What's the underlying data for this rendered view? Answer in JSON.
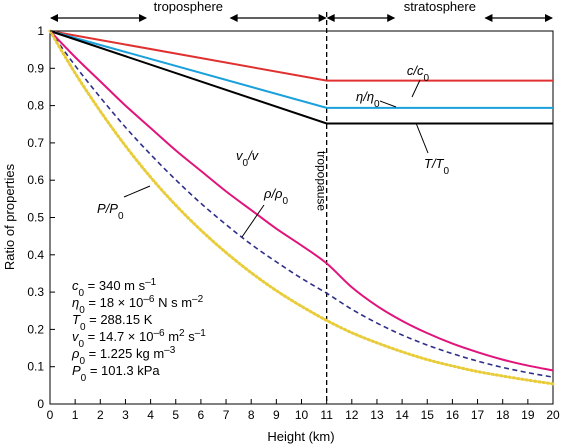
{
  "chart_data": {
    "type": "line",
    "xlabel": "Height (km)",
    "ylabel": "Ratio of properties",
    "xlim": [
      0,
      20
    ],
    "ylim": [
      0,
      1
    ],
    "x_ticks": [
      "0",
      "1",
      "2",
      "3",
      "4",
      "5",
      "6",
      "7",
      "8",
      "9",
      "10",
      "11",
      "12",
      "13",
      "14",
      "15",
      "16",
      "17",
      "18",
      "19",
      "20"
    ],
    "y_ticks": [
      "0",
      "0.1",
      "0.2",
      "0.3",
      "0.4",
      "0.5",
      "0.6",
      "0.7",
      "0.8",
      "0.9",
      "1"
    ],
    "grid": false,
    "regions": [
      {
        "label": "troposphere",
        "from": 0,
        "to": 11
      },
      {
        "label": "stratosphere",
        "from": 11,
        "to": 20
      }
    ],
    "tropopause": {
      "x": 11,
      "label": "tropopause"
    },
    "series": [
      {
        "key": "c",
        "color": "#e03030",
        "style": "solid",
        "points": [
          [
            0,
            1
          ],
          [
            11,
            0.867
          ],
          [
            20,
            0.867
          ]
        ]
      },
      {
        "key": "eta",
        "color": "#1aa0dc",
        "style": "solid",
        "points": [
          [
            0,
            1
          ],
          [
            11,
            0.794
          ],
          [
            20,
            0.794
          ]
        ]
      },
      {
        "key": "T",
        "color": "#000000",
        "style": "solid",
        "points": [
          [
            0,
            1
          ],
          [
            11,
            0.752
          ],
          [
            20,
            0.752
          ]
        ]
      },
      {
        "key": "nu",
        "color": "#e0147a",
        "style": "solid",
        "points": [
          [
            0,
            1
          ],
          [
            1,
            0.93
          ],
          [
            2,
            0.865
          ],
          [
            3,
            0.8
          ],
          [
            4,
            0.74
          ],
          [
            5,
            0.68
          ],
          [
            6,
            0.625
          ],
          [
            7,
            0.57
          ],
          [
            8,
            0.52
          ],
          [
            9,
            0.47
          ],
          [
            10,
            0.425
          ],
          [
            11,
            0.377
          ],
          [
            12,
            0.313
          ],
          [
            13,
            0.263
          ],
          [
            14,
            0.223
          ],
          [
            15,
            0.19
          ],
          [
            16,
            0.162
          ],
          [
            17,
            0.139
          ],
          [
            18,
            0.119
          ],
          [
            19,
            0.103
          ],
          [
            20,
            0.09
          ]
        ]
      },
      {
        "key": "rho",
        "color": "#2e2e8a",
        "style": "dashed",
        "points": [
          [
            0,
            1
          ],
          [
            1,
            0.907
          ],
          [
            2,
            0.822
          ],
          [
            3,
            0.742
          ],
          [
            4,
            0.669
          ],
          [
            5,
            0.601
          ],
          [
            6,
            0.538
          ],
          [
            7,
            0.481
          ],
          [
            8,
            0.428
          ],
          [
            9,
            0.381
          ],
          [
            10,
            0.337
          ],
          [
            11,
            0.297
          ],
          [
            12,
            0.254
          ],
          [
            13,
            0.217
          ],
          [
            14,
            0.185
          ],
          [
            15,
            0.158
          ],
          [
            16,
            0.135
          ],
          [
            17,
            0.115
          ],
          [
            18,
            0.098
          ],
          [
            19,
            0.084
          ],
          [
            20,
            0.072
          ]
        ]
      },
      {
        "key": "P",
        "color": "#e8cc3a",
        "style": "dotted",
        "points": [
          [
            0,
            1
          ],
          [
            1,
            0.887
          ],
          [
            2,
            0.785
          ],
          [
            3,
            0.692
          ],
          [
            4,
            0.608
          ],
          [
            5,
            0.533
          ],
          [
            6,
            0.466
          ],
          [
            7,
            0.406
          ],
          [
            8,
            0.352
          ],
          [
            9,
            0.304
          ],
          [
            10,
            0.262
          ],
          [
            11,
            0.224
          ],
          [
            12,
            0.191
          ],
          [
            13,
            0.164
          ],
          [
            14,
            0.14
          ],
          [
            15,
            0.119
          ],
          [
            16,
            0.102
          ],
          [
            17,
            0.087
          ],
          [
            18,
            0.075
          ],
          [
            19,
            0.064
          ],
          [
            20,
            0.054
          ]
        ]
      }
    ],
    "curve_labels": [
      {
        "series": "c",
        "main": "c/c",
        "sub": "0"
      },
      {
        "series": "eta",
        "main": "η/η",
        "sub": "0"
      },
      {
        "series": "T",
        "main": "T/T",
        "sub": "0"
      },
      {
        "series": "nu",
        "main": "v",
        "sub": "0",
        "tail": "/v"
      },
      {
        "series": "rho",
        "main": "ρ/ρ",
        "sub": "0"
      },
      {
        "series": "P",
        "main": "P/P",
        "sub": "0"
      }
    ],
    "legend_box": [
      {
        "sym": "c",
        "sub": "0",
        "text": " = 340 m s",
        "sup": "–1"
      },
      {
        "sym": "η",
        "sub": "0",
        "text": " = 18 × 10",
        "sup": "–6",
        "text2": " N s m",
        "sup2": "–2"
      },
      {
        "sym": "T",
        "sub": "0",
        "text": " = 288.15 K"
      },
      {
        "sym": "v",
        "sub": "0",
        "text": " = 14.7 × 10",
        "sup": "–6",
        "text2": " m",
        "sup2": "2",
        "text3": " s",
        "sup3": "–1"
      },
      {
        "sym": "ρ",
        "sub": "0",
        "text": " = 1.225 kg m",
        "sup": "–3"
      },
      {
        "sym": "P",
        "sub": "0",
        "text": " = 101.3 kPa"
      }
    ]
  }
}
